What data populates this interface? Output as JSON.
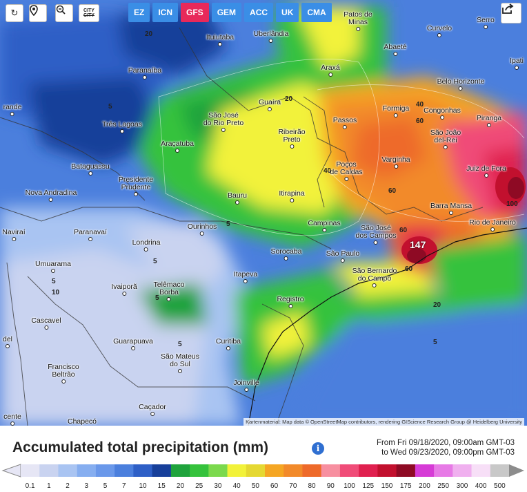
{
  "toolbar": {
    "refresh_icon": "refresh-icon",
    "locate_icon": "location-pin-icon",
    "zoom_icon": "zoom-out-icon",
    "city_button_top": "CITY",
    "city_button_bottom": "CITY"
  },
  "models": [
    {
      "label": "EZ",
      "active": false
    },
    {
      "label": "ICN",
      "active": false
    },
    {
      "label": "GFS",
      "active": true
    },
    {
      "label": "GEM",
      "active": false
    },
    {
      "label": "ACC",
      "active": false
    },
    {
      "label": "UK",
      "active": false
    },
    {
      "label": "CMA",
      "active": false
    }
  ],
  "share_icon": "share-icon",
  "map": {
    "attribution": "Kartenmaterial: Map data © OpenStreetMap contributors, rendering GIScience Research Group @ Heidelberg University",
    "peak_value": "147",
    "cities": [
      {
        "name": "Patos de\nMinas"
      },
      {
        "name": "Uberlândia"
      },
      {
        "name": "Ituiutaba"
      },
      {
        "name": "Curvelo"
      },
      {
        "name": "Serro"
      },
      {
        "name": "Abaeté"
      },
      {
        "name": "Ipati"
      },
      {
        "name": "Araxá"
      },
      {
        "name": "Paranaíba"
      },
      {
        "name": "Belo Horizonte"
      },
      {
        "name": "Guaíra"
      },
      {
        "name": "Formiga"
      },
      {
        "name": "Congonhas"
      },
      {
        "name": "rande"
      },
      {
        "name": "São José\ndo Rio Preto"
      },
      {
        "name": "Passos"
      },
      {
        "name": "Piranga"
      },
      {
        "name": "Três Lagoas"
      },
      {
        "name": "Ribeirão\nPreto"
      },
      {
        "name": "São João\ndel-Rei"
      },
      {
        "name": "Araçatuba"
      },
      {
        "name": "Varginha"
      },
      {
        "name": "Bataguassu"
      },
      {
        "name": "Poços\nde Caldas"
      },
      {
        "name": "Juiz de Fora"
      },
      {
        "name": "Presidente\nPrudente"
      },
      {
        "name": "Nova Andradina"
      },
      {
        "name": "Bauru"
      },
      {
        "name": "Itirapina"
      },
      {
        "name": "Barra Mansa"
      },
      {
        "name": "Campinas"
      },
      {
        "name": "Rio de Janeiro"
      },
      {
        "name": "Naviraí"
      },
      {
        "name": "Paranavaí"
      },
      {
        "name": "Ourinhos"
      },
      {
        "name": "São José\ndos Campos"
      },
      {
        "name": "Londrina"
      },
      {
        "name": "Sorocaba"
      },
      {
        "name": "São Paulo"
      },
      {
        "name": "Umuarama"
      },
      {
        "name": "São Bernardo\ndo Campo"
      },
      {
        "name": "Itapeva"
      },
      {
        "name": "Ivaiporã"
      },
      {
        "name": "Telêmaco\nBorba"
      },
      {
        "name": "Registro"
      },
      {
        "name": "Cascavel"
      },
      {
        "name": "Guarapuava"
      },
      {
        "name": "Curitiba"
      },
      {
        "name": "del"
      },
      {
        "name": "São Mateus\ndo Sul"
      },
      {
        "name": "Francisco\nBeltrão"
      },
      {
        "name": "Joinville"
      },
      {
        "name": "Caçador"
      },
      {
        "name": "Chapecó"
      },
      {
        "name": "cente"
      }
    ],
    "contour_labels": [
      "20",
      "5",
      "20",
      "40",
      "60",
      "60",
      "100",
      "40",
      "60",
      "60",
      "5",
      "5",
      "5",
      "20",
      "5",
      "5",
      "10",
      "5"
    ]
  },
  "title": "Accumulated total precipitation (mm)",
  "info_icon": "info-icon",
  "period": {
    "line1": "From Fri 09/18/2020, 09:00am GMT-03",
    "line2": "to Wed 09/23/2020, 09:00pm GMT-03"
  },
  "legend": {
    "ticks": [
      "0.1",
      "1",
      "2",
      "3",
      "5",
      "7",
      "10",
      "15",
      "20",
      "25",
      "30",
      "40",
      "50",
      "60",
      "70",
      "80",
      "90",
      "100",
      "125",
      "150",
      "175",
      "200",
      "250",
      "300",
      "400",
      "500"
    ],
    "colors": [
      "#e6e6f5",
      "#c9d3f0",
      "#a9c4f2",
      "#86aef0",
      "#6a98ea",
      "#4b7fdd",
      "#2e5fc6",
      "#173f9a",
      "#1fa33c",
      "#35c23c",
      "#7bd94d",
      "#f2f23a",
      "#e5d832",
      "#f5a623",
      "#f28a2a",
      "#ee6a2a",
      "#f78fa0",
      "#f04c78",
      "#e0204f",
      "#c2102e",
      "#8e0a24",
      "#d63bd6",
      "#e77ae6",
      "#f0b0ef",
      "#f7dff7",
      "#c8c8c8"
    ]
  }
}
